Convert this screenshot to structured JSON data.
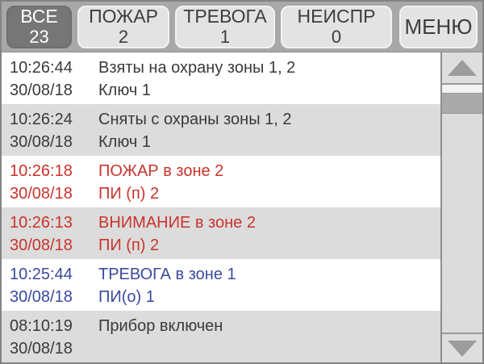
{
  "tabs": [
    {
      "label": "ВСЕ",
      "count": "23",
      "active": true
    },
    {
      "label": "ПОЖАР",
      "count": "2",
      "active": false
    },
    {
      "label": "ТРЕВОГА",
      "count": "1",
      "active": false
    },
    {
      "label": "НЕИСПР",
      "count": "0",
      "active": false
    }
  ],
  "menu_label": "МЕНЮ",
  "events": [
    {
      "time": "10:26:44",
      "date": "30/08/18",
      "line1": "Взяты на охрану зоны 1, 2",
      "line2": "Ключ 1",
      "color": "default"
    },
    {
      "time": "10:26:24",
      "date": "30/08/18",
      "line1": "Сняты с охраны зоны 1, 2",
      "line2": "Ключ 1",
      "color": "default"
    },
    {
      "time": "10:26:18",
      "date": "30/08/18",
      "line1": "ПОЖАР в зоне 2",
      "line2": "ПИ (п) 2",
      "color": "red"
    },
    {
      "time": "10:26:13",
      "date": "30/08/18",
      "line1": "ВНИМАНИЕ в зоне 2",
      "line2": "ПИ (п) 2",
      "color": "red"
    },
    {
      "time": "10:25:44",
      "date": "30/08/18",
      "line1": "ТРЕВОГА в зоне 1",
      "line2": "ПИ(о) 1",
      "color": "blue"
    },
    {
      "time": "08:10:19",
      "date": "30/08/18",
      "line1": "Прибор включен",
      "line2": "",
      "color": "default"
    }
  ],
  "colors": {
    "default": "#3a3a3a",
    "red": "#c9342c",
    "blue": "#3a4a9e",
    "active_tab_bg": "#767676",
    "tabbar_bg": "#a8a8a8",
    "row_alt_bg": "#dcdcdc"
  }
}
